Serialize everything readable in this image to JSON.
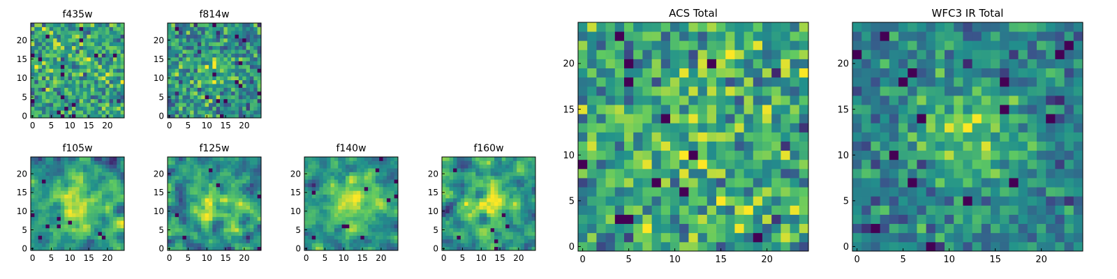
{
  "chart_data": [
    {
      "type": "heatmap",
      "title": "f435w",
      "x_ticks": [
        "0",
        "5",
        "10",
        "15",
        "20"
      ],
      "y_ticks": [
        "0",
        "5",
        "10",
        "15",
        "20"
      ],
      "xlim": [
        0,
        25
      ],
      "ylim": [
        0,
        25
      ],
      "grid": false,
      "colormap": "viridis",
      "smoothness": 0,
      "noise": 1.0,
      "center_boost": 0.1,
      "seed": 11
    },
    {
      "type": "heatmap",
      "title": "f814w",
      "x_ticks": [
        "0",
        "5",
        "10",
        "15",
        "20"
      ],
      "y_ticks": [
        "0",
        "5",
        "10",
        "15",
        "20"
      ],
      "xlim": [
        0,
        25
      ],
      "ylim": [
        0,
        25
      ],
      "grid": false,
      "colormap": "viridis",
      "smoothness": 0,
      "noise": 1.0,
      "center_boost": 0.35,
      "seed": 23
    },
    {
      "type": "heatmap",
      "title": "f105w",
      "x_ticks": [
        "0",
        "5",
        "10",
        "15",
        "20"
      ],
      "y_ticks": [
        "0",
        "5",
        "10",
        "15",
        "20"
      ],
      "xlim": [
        0,
        25
      ],
      "ylim": [
        0,
        25
      ],
      "grid": false,
      "colormap": "viridis",
      "smoothness": 1,
      "noise": 0.8,
      "center_boost": 0.7,
      "seed": 37
    },
    {
      "type": "heatmap",
      "title": "f125w",
      "x_ticks": [
        "0",
        "5",
        "10",
        "15",
        "20"
      ],
      "y_ticks": [
        "0",
        "5",
        "10",
        "15",
        "20"
      ],
      "xlim": [
        0,
        25
      ],
      "ylim": [
        0,
        25
      ],
      "grid": false,
      "colormap": "viridis",
      "smoothness": 1,
      "noise": 0.8,
      "center_boost": 0.7,
      "seed": 41
    },
    {
      "type": "heatmap",
      "title": "f140w",
      "x_ticks": [
        "0",
        "5",
        "10",
        "15",
        "20"
      ],
      "y_ticks": [
        "0",
        "5",
        "10",
        "15",
        "20"
      ],
      "xlim": [
        0,
        25
      ],
      "ylim": [
        0,
        25
      ],
      "grid": false,
      "colormap": "viridis",
      "smoothness": 1,
      "noise": 0.8,
      "center_boost": 0.8,
      "seed": 53
    },
    {
      "type": "heatmap",
      "title": "f160w",
      "x_ticks": [
        "0",
        "5",
        "10",
        "15",
        "20"
      ],
      "y_ticks": [
        "0",
        "5",
        "10",
        "15",
        "20"
      ],
      "xlim": [
        0,
        25
      ],
      "ylim": [
        0,
        25
      ],
      "grid": false,
      "colormap": "viridis",
      "smoothness": 1,
      "noise": 0.85,
      "center_boost": 0.8,
      "seed": 67
    },
    {
      "type": "heatmap",
      "title": "ACS Total",
      "x_ticks": [
        "0",
        "5",
        "10",
        "15",
        "20"
      ],
      "y_ticks": [
        "0",
        "5",
        "10",
        "15",
        "20"
      ],
      "xlim": [
        0,
        25
      ],
      "ylim": [
        0,
        25
      ],
      "grid": false,
      "colormap": "viridis",
      "smoothness": 0,
      "noise": 1.0,
      "center_boost": 0.2,
      "seed": 79
    },
    {
      "type": "heatmap",
      "title": "WFC3 IR Total",
      "x_ticks": [
        "0",
        "5",
        "10",
        "15",
        "20"
      ],
      "y_ticks": [
        "0",
        "5",
        "10",
        "15",
        "20"
      ],
      "xlim": [
        0,
        25
      ],
      "ylim": [
        0,
        25
      ],
      "grid": false,
      "colormap": "viridis",
      "smoothness": 0,
      "noise": 0.9,
      "center_boost": 0.8,
      "seed": 97
    }
  ],
  "colors": {
    "viridis_stops": [
      "#440154",
      "#3b528b",
      "#21918c",
      "#5ec962",
      "#fde725"
    ]
  }
}
